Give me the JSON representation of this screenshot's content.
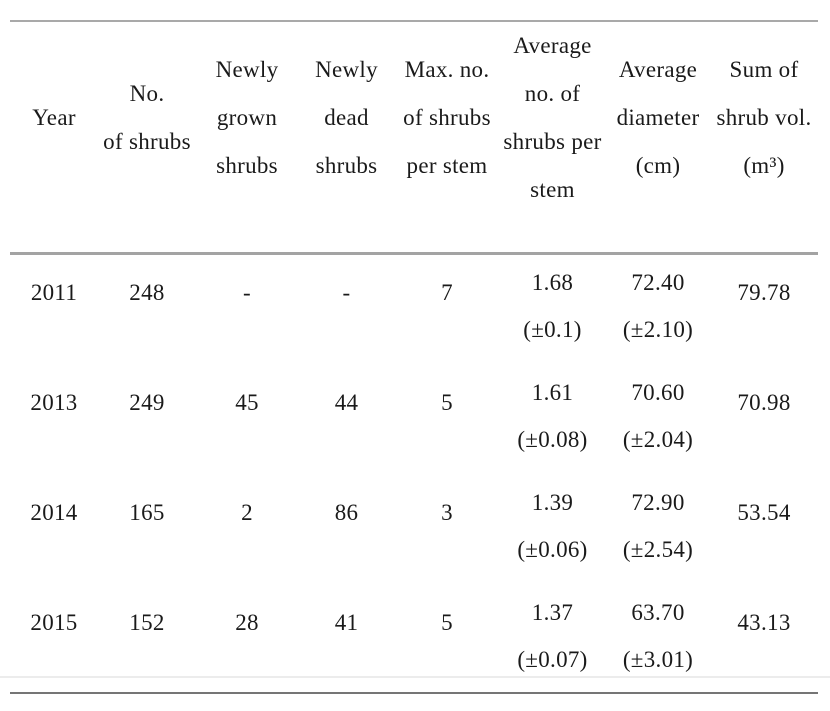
{
  "meta": {
    "kind": "academic-paper-table",
    "background_color": "#ffffff",
    "text_color": "#1a1a1a",
    "rule_color_top": "#a9a9a9",
    "rule_color_header": "#a3a3a3",
    "rule_color_bottom_light": "#ececec",
    "rule_color_bottom_dark": "#757575"
  },
  "table": {
    "columns": [
      {
        "key": "year",
        "header_lines": [
          "Year"
        ]
      },
      {
        "key": "no-of-shrubs",
        "header_lines": [
          "No.",
          "of shrubs"
        ]
      },
      {
        "key": "newly-grown",
        "header_lines": [
          "Newly",
          "grown",
          "shrubs"
        ]
      },
      {
        "key": "newly-dead",
        "header_lines": [
          "Newly",
          "dead",
          "shrubs"
        ]
      },
      {
        "key": "max-per-stem",
        "header_lines": [
          "Max. no.",
          "of shrubs",
          "per stem"
        ]
      },
      {
        "key": "avg-per-stem",
        "header_lines": [
          "Average",
          "no. of",
          "shrubs per",
          "stem"
        ]
      },
      {
        "key": "avg-diameter",
        "header_lines": [
          "Average",
          "diameter",
          "(cm)"
        ]
      },
      {
        "key": "sum-volume",
        "header_lines": [
          "Sum of",
          "shrub vol.",
          "(m³)"
        ]
      }
    ],
    "rows": [
      {
        "id": "2011",
        "cells": [
          [
            "2011"
          ],
          [
            "248"
          ],
          [
            "-"
          ],
          [
            "-"
          ],
          [
            "7"
          ],
          [
            "1.68",
            "(±0.1)"
          ],
          [
            "72.40",
            "(±2.10)"
          ],
          [
            "79.78"
          ]
        ]
      },
      {
        "id": "2013",
        "cells": [
          [
            "2013"
          ],
          [
            "249"
          ],
          [
            "45"
          ],
          [
            "44"
          ],
          [
            "5"
          ],
          [
            "1.61",
            "(±0.08)"
          ],
          [
            "70.60",
            "(±2.04)"
          ],
          [
            "70.98"
          ]
        ]
      },
      {
        "id": "2014",
        "cells": [
          [
            "2014"
          ],
          [
            "165"
          ],
          [
            "2"
          ],
          [
            "86"
          ],
          [
            "3"
          ],
          [
            "1.39",
            "(±0.06)"
          ],
          [
            "72.90",
            "(±2.54)"
          ],
          [
            "53.54"
          ]
        ]
      },
      {
        "id": "2015",
        "cells": [
          [
            "2015"
          ],
          [
            "152"
          ],
          [
            "28"
          ],
          [
            "41"
          ],
          [
            "5"
          ],
          [
            "1.37",
            "(±0.07)"
          ],
          [
            "63.70",
            "(±3.01)"
          ],
          [
            "43.13"
          ]
        ]
      }
    ]
  },
  "chart_data": {
    "type": "table",
    "title": "",
    "categories": [
      "2011",
      "2013",
      "2014",
      "2015"
    ],
    "series": [
      {
        "name": "No. of shrubs",
        "values": [
          248,
          249,
          165,
          152
        ]
      },
      {
        "name": "Newly grown shrubs",
        "values": [
          null,
          45,
          2,
          28
        ]
      },
      {
        "name": "Newly dead shrubs",
        "values": [
          null,
          44,
          86,
          41
        ]
      },
      {
        "name": "Max. no. of shrubs per stem",
        "values": [
          7,
          5,
          3,
          5
        ]
      },
      {
        "name": "Average no. of shrubs per stem",
        "values": [
          1.68,
          1.61,
          1.39,
          1.37
        ]
      },
      {
        "name": "Average no. of shrubs per stem (SE)",
        "values": [
          0.1,
          0.08,
          0.06,
          0.07
        ]
      },
      {
        "name": "Average diameter (cm)",
        "values": [
          72.4,
          70.6,
          72.9,
          63.7
        ]
      },
      {
        "name": "Average diameter (cm) (SE)",
        "values": [
          2.1,
          2.04,
          2.54,
          3.01
        ]
      },
      {
        "name": "Sum of shrub vol. (m3)",
        "values": [
          79.78,
          70.98,
          53.54,
          43.13
        ]
      }
    ]
  }
}
